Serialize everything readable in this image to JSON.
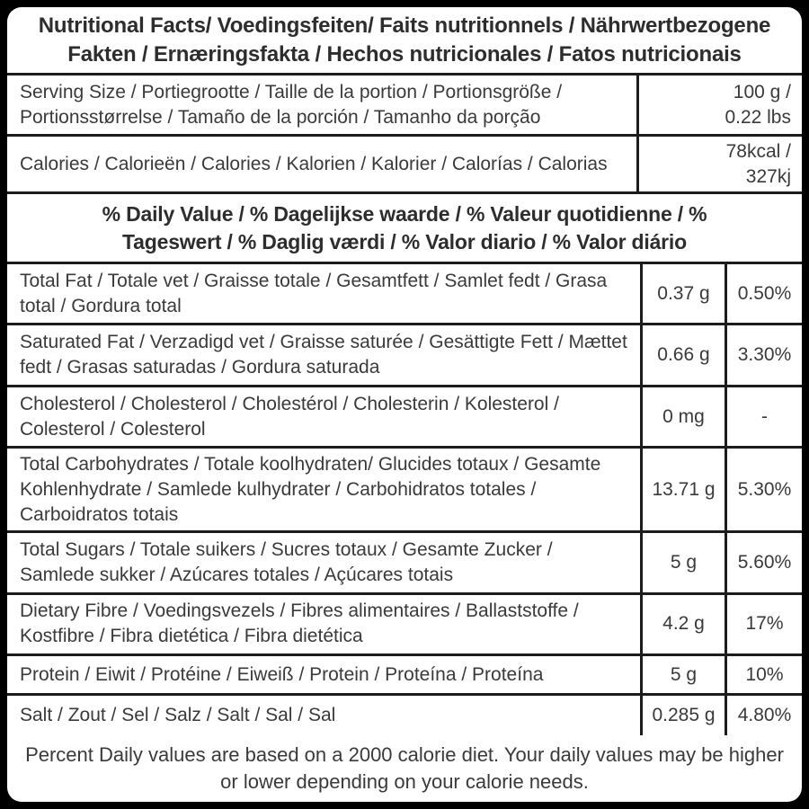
{
  "label": {
    "title": "Nutritional Facts/ Voedingsfeiten/ Faits nutritionnels / Nährwertbezogene Fakten / Ernæringsfakta / Hechos nutricionales / Fatos nutricionais",
    "serving": {
      "label": "Serving Size / Portiegrootte / Taille de la portion / Portionsgröße / Portionsstørrelse / Tamaño de la porción / Tamanho da porção",
      "value_lines": [
        "100 g /",
        "0.22 lbs"
      ]
    },
    "calories": {
      "label": "Calories / Calorieën / Calories / Kalorien / Kalorier / Calorías / Calorias",
      "value_lines": [
        "78kcal /",
        "327kj"
      ]
    },
    "daily_value_heading": "% Daily Value / % Dagelijkse waarde / % Valeur quotidienne / % Tageswert / % Daglig værdi / % Valor diario / % Valor diário",
    "nutrients": [
      {
        "label": "Total Fat / Totale vet / Graisse totale / Gesamtfett / Samlet fedt / Grasa total / Gordura total",
        "amount": "0.37 g",
        "percent": "0.50%"
      },
      {
        "label": "Saturated Fat / Verzadigd vet / Graisse saturée / Gesättigte Fett / Mættet fedt / Grasas saturadas / Gordura saturada",
        "amount": "0.66 g",
        "percent": "3.30%"
      },
      {
        "label": "Cholesterol / Cholesterol / Cholestérol / Cholesterin / Kolesterol / Colesterol / Colesterol",
        "amount": "0 mg",
        "percent": "-"
      },
      {
        "label": "Total Carbohydrates / Totale koolhydraten/ Glucides totaux / Gesamte Kohlenhydrate / Samlede kulhydrater / Carbohidratos totales / Carboidratos totais",
        "amount": "13.71 g",
        "percent": "5.30%"
      },
      {
        "label": "Total Sugars / Totale suikers / Sucres totaux / Gesamte Zucker / Samlede sukker / Azúcares totales / Açúcares totais",
        "amount": "5 g",
        "percent": "5.60%"
      },
      {
        "label": "Dietary Fibre / Voedingsvezels / Fibres alimentaires / Ballaststoffe / Kostfibre / Fibra dietética / Fibra dietética",
        "amount": "4.2 g",
        "percent": "17%"
      },
      {
        "label": "Protein / Eiwit / Protéine / Eiweiß / Protein / Proteína / Proteína",
        "amount": "5 g",
        "percent": "10%"
      },
      {
        "label": "Salt / Zout / Sel / Salz / Salt / Sal / Sal",
        "amount": "0.285 g",
        "percent": "4.80%"
      }
    ],
    "footnote": "Percent Daily values are based on a 2000 calorie diet. Your daily values may be higher or lower depending on your calorie needs.",
    "colors": {
      "background": "#000000",
      "card": "#ffffff",
      "border": "#1c1c1c",
      "text": "#3a3a3a"
    }
  }
}
